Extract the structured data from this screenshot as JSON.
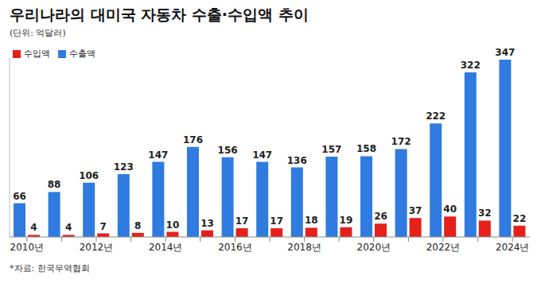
{
  "chart_data": {
    "type": "bar",
    "title": "우리나라의 대미국 자동차 수출·수입액 추이",
    "subtitle": "(단위: 억달러)",
    "source": "*자료: 한국무역협회",
    "categories": [
      "2010년",
      null,
      "2012년",
      null,
      "2014년",
      null,
      "2016년",
      null,
      "2018년",
      null,
      "2020년",
      null,
      "2022년",
      null,
      "2024년"
    ],
    "series": [
      {
        "name": "수출액",
        "color": "#2f7be0",
        "values": [
          66,
          88,
          106,
          123,
          147,
          176,
          156,
          147,
          136,
          157,
          158,
          172,
          222,
          322,
          347
        ]
      },
      {
        "name": "수입액",
        "color": "#e5201b",
        "values": [
          4,
          4,
          7,
          8,
          10,
          13,
          17,
          17,
          18,
          19,
          26,
          37,
          40,
          32,
          22
        ]
      }
    ],
    "ylim": [
      0,
      350
    ],
    "data_labels": true,
    "legend": "top-left",
    "tick_labels": "x",
    "grid": false
  }
}
